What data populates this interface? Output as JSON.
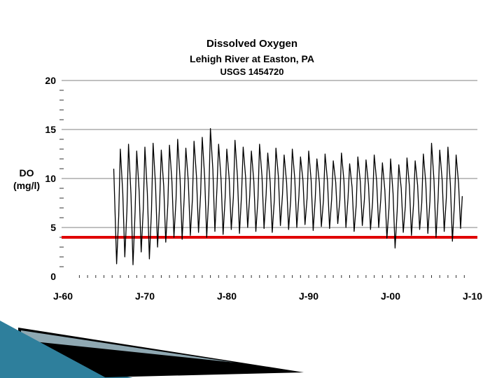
{
  "decoration": {
    "teal_color": "#2E7F9C",
    "black_color": "#000000",
    "accent_color": "#8FA8B2"
  },
  "chart_data": {
    "type": "line",
    "title": "Dissolved Oxygen",
    "subtitle": "Lehigh River at Easton, PA",
    "station": "USGS 1454720",
    "ylabel": "DO (mg/l)",
    "ylabel_lines": [
      "DO",
      "(mg/l)"
    ],
    "xlim": [
      1960,
      2010
    ],
    "ylim": [
      0,
      20
    ],
    "grid": true,
    "grid_y_values": [
      5,
      10,
      15,
      20
    ],
    "grid_color": "#808080",
    "x_tick_values": [
      1960,
      1970,
      1980,
      1990,
      2000,
      2010
    ],
    "x_tick_labels": [
      "J-60",
      "J-70",
      "J-80",
      "J-90",
      "J-00",
      "J-10"
    ],
    "y_tick_values": [
      0,
      5,
      10,
      15,
      20
    ],
    "y_tick_labels": [
      "0",
      "5",
      "10",
      "15",
      "20"
    ],
    "reference_line": {
      "value": 4,
      "color": "#E00000"
    },
    "series": [
      {
        "name": "Dissolved Oxygen (mg/l)",
        "color": "#000000",
        "points": [
          [
            1966.2,
            11.0
          ],
          [
            1966.55,
            1.3
          ],
          [
            1966.8,
            6.2
          ],
          [
            1967,
            13.0
          ],
          [
            1967.3,
            8.5
          ],
          [
            1967.55,
            2.0
          ],
          [
            1967.8,
            6.7
          ],
          [
            1968,
            13.5
          ],
          [
            1968.3,
            8.4
          ],
          [
            1968.55,
            1.2
          ],
          [
            1968.8,
            6.6
          ],
          [
            1969,
            12.8
          ],
          [
            1969.3,
            8.7
          ],
          [
            1969.55,
            2.5
          ],
          [
            1969.8,
            6.9
          ],
          [
            1970,
            13.2
          ],
          [
            1970.3,
            8.5
          ],
          [
            1970.55,
            1.8
          ],
          [
            1970.8,
            6.7
          ],
          [
            1971,
            13.6
          ],
          [
            1971.3,
            9.3
          ],
          [
            1971.55,
            3.0
          ],
          [
            1971.8,
            7.5
          ],
          [
            1972,
            12.9
          ],
          [
            1972.3,
            9.2
          ],
          [
            1972.55,
            3.5
          ],
          [
            1972.8,
            7.4
          ],
          [
            1973,
            13.4
          ],
          [
            1973.3,
            9.7
          ],
          [
            1973.55,
            4.0
          ],
          [
            1973.8,
            7.9
          ],
          [
            1974,
            14.0
          ],
          [
            1974.3,
            9.9
          ],
          [
            1974.55,
            3.8
          ],
          [
            1974.8,
            8.1
          ],
          [
            1975,
            13.1
          ],
          [
            1975.3,
            9.7
          ],
          [
            1975.55,
            4.2
          ],
          [
            1975.8,
            7.9
          ],
          [
            1976,
            13.8
          ],
          [
            1976.3,
            10.2
          ],
          [
            1976.55,
            4.5
          ],
          [
            1976.8,
            8.4
          ],
          [
            1977,
            14.2
          ],
          [
            1977.3,
            10.1
          ],
          [
            1977.55,
            4.0
          ],
          [
            1977.8,
            8.3
          ],
          [
            1978,
            15.1
          ],
          [
            1978.3,
            10.9
          ],
          [
            1978.55,
            4.6
          ],
          [
            1978.8,
            9.1
          ],
          [
            1979,
            13.5
          ],
          [
            1979.3,
            9.9
          ],
          [
            1979.55,
            4.3
          ],
          [
            1979.8,
            8.1
          ],
          [
            1980,
            13.0
          ],
          [
            1980.3,
            9.9
          ],
          [
            1980.55,
            4.8
          ],
          [
            1980.8,
            8.1
          ],
          [
            1981,
            13.9
          ],
          [
            1981.3,
            10.2
          ],
          [
            1981.55,
            4.4
          ],
          [
            1981.8,
            8.4
          ],
          [
            1982,
            13.2
          ],
          [
            1982.3,
            10.1
          ],
          [
            1982.55,
            5.0
          ],
          [
            1982.8,
            8.3
          ],
          [
            1983,
            12.8
          ],
          [
            1983.3,
            9.7
          ],
          [
            1983.55,
            4.6
          ],
          [
            1983.8,
            7.9
          ],
          [
            1984,
            13.5
          ],
          [
            1984.3,
            10.2
          ],
          [
            1984.55,
            4.9
          ],
          [
            1984.8,
            8.4
          ],
          [
            1985,
            12.6
          ],
          [
            1985.3,
            9.6
          ],
          [
            1985.55,
            4.5
          ],
          [
            1985.8,
            7.8
          ],
          [
            1986,
            13.1
          ],
          [
            1986.3,
            10.2
          ],
          [
            1986.55,
            5.2
          ],
          [
            1986.8,
            8.4
          ],
          [
            1987,
            12.4
          ],
          [
            1987.3,
            9.6
          ],
          [
            1987.55,
            4.8
          ],
          [
            1987.8,
            7.8
          ],
          [
            1988,
            13.0
          ],
          [
            1988.3,
            10.0
          ],
          [
            1988.55,
            5.0
          ],
          [
            1988.8,
            8.2
          ],
          [
            1989,
            12.2
          ],
          [
            1989.3,
            9.8
          ],
          [
            1989.55,
            5.3
          ],
          [
            1989.8,
            8.0
          ],
          [
            1990,
            12.8
          ],
          [
            1990.3,
            9.8
          ],
          [
            1990.55,
            4.7
          ],
          [
            1990.8,
            8.0
          ],
          [
            1991,
            12.0
          ],
          [
            1991.3,
            9.6
          ],
          [
            1991.55,
            5.1
          ],
          [
            1991.8,
            7.8
          ],
          [
            1992,
            12.5
          ],
          [
            1992.3,
            9.7
          ],
          [
            1992.55,
            4.9
          ],
          [
            1992.8,
            7.9
          ],
          [
            1993,
            11.8
          ],
          [
            1993.3,
            9.6
          ],
          [
            1993.55,
            5.4
          ],
          [
            1993.8,
            7.8
          ],
          [
            1994,
            12.6
          ],
          [
            1994.3,
            9.8
          ],
          [
            1994.55,
            5.0
          ],
          [
            1994.8,
            8.0
          ],
          [
            1995,
            11.5
          ],
          [
            1995.3,
            9.1
          ],
          [
            1995.55,
            4.6
          ],
          [
            1995.8,
            7.3
          ],
          [
            1996,
            12.2
          ],
          [
            1996.3,
            9.7
          ],
          [
            1996.55,
            5.2
          ],
          [
            1996.8,
            7.9
          ],
          [
            1997,
            11.9
          ],
          [
            1997.3,
            9.4
          ],
          [
            1997.55,
            4.8
          ],
          [
            1997.8,
            7.6
          ],
          [
            1998,
            12.4
          ],
          [
            1998.3,
            9.7
          ],
          [
            1998.55,
            5.0
          ],
          [
            1998.8,
            7.9
          ],
          [
            1999,
            11.6
          ],
          [
            1999.3,
            8.8
          ],
          [
            1999.55,
            3.9
          ],
          [
            1999.8,
            7.0
          ],
          [
            2000,
            12.0
          ],
          [
            2000.3,
            8.5
          ],
          [
            2000.55,
            2.9
          ],
          [
            2000.8,
            6.7
          ],
          [
            2001,
            11.4
          ],
          [
            2001.3,
            9.0
          ],
          [
            2001.55,
            4.5
          ],
          [
            2001.8,
            7.2
          ],
          [
            2002,
            12.1
          ],
          [
            2002.3,
            9.2
          ],
          [
            2002.55,
            4.2
          ],
          [
            2002.8,
            7.4
          ],
          [
            2003,
            11.8
          ],
          [
            2003.3,
            9.3
          ],
          [
            2003.55,
            4.8
          ],
          [
            2003.8,
            7.5
          ],
          [
            2004,
            12.5
          ],
          [
            2004.3,
            9.5
          ],
          [
            2004.55,
            4.4
          ],
          [
            2004.8,
            7.7
          ],
          [
            2005,
            13.6
          ],
          [
            2005.3,
            9.8
          ],
          [
            2005.55,
            4.0
          ],
          [
            2005.8,
            8.0
          ],
          [
            2006,
            12.9
          ],
          [
            2006.3,
            9.8
          ],
          [
            2006.55,
            4.6
          ],
          [
            2006.8,
            8.0
          ],
          [
            2007,
            13.2
          ],
          [
            2007.3,
            9.4
          ],
          [
            2007.55,
            3.6
          ],
          [
            2007.8,
            7.6
          ],
          [
            2008,
            12.4
          ],
          [
            2008.3,
            9.5
          ],
          [
            2008.55,
            4.9
          ],
          [
            2008.75,
            8.2
          ]
        ]
      }
    ]
  }
}
